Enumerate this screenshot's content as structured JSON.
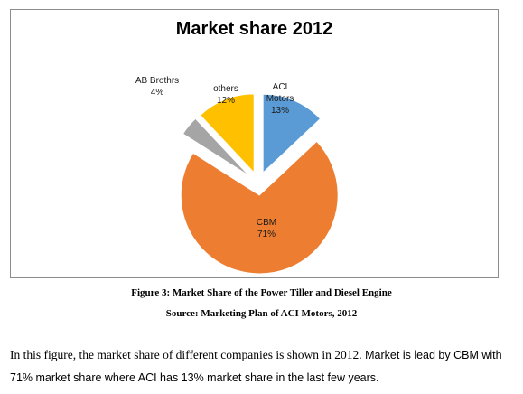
{
  "chart_data": {
    "type": "pie",
    "title": "Market share 2012",
    "slices": [
      {
        "label_lines": [
          "ACI",
          "Motors"
        ],
        "pct_label": "13%",
        "value": 13,
        "color": "#5b9bd5"
      },
      {
        "label_lines": [
          "CBM"
        ],
        "pct_label": "71%",
        "value": 71,
        "color": "#ed7d31"
      },
      {
        "label_lines": [
          "AB Brothrs"
        ],
        "pct_label": "4%",
        "value": 4,
        "color": "#a5a5a5"
      },
      {
        "label_lines": [
          "others"
        ],
        "pct_label": "12%",
        "value": 12,
        "color": "#ffc000"
      }
    ],
    "exploded": true,
    "legend": "none"
  },
  "captions": {
    "figure": "Figure 3: Market Share of the Power Tiller and Diesel Engine",
    "source": "Source: Marketing Plan of ACI Motors, 2012"
  },
  "paragraph": {
    "part1": "In this figure, the market share of different companies is shown in 2012.",
    "part2": "Market is lead by CBM with 71% market share where ACI has 13% market share in the last few years."
  }
}
